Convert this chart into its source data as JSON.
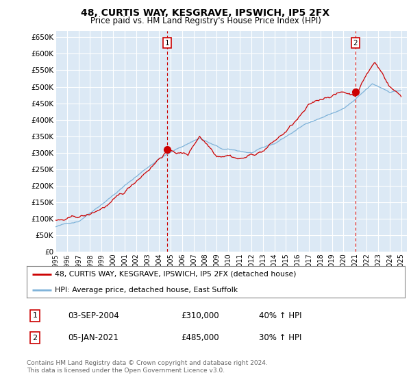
{
  "title": "48, CURTIS WAY, KESGRAVE, IPSWICH, IP5 2FX",
  "subtitle": "Price paid vs. HM Land Registry's House Price Index (HPI)",
  "ylabel_ticks": [
    "£0",
    "£50K",
    "£100K",
    "£150K",
    "£200K",
    "£250K",
    "£300K",
    "£350K",
    "£400K",
    "£450K",
    "£500K",
    "£550K",
    "£600K",
    "£650K"
  ],
  "ytick_values": [
    0,
    50000,
    100000,
    150000,
    200000,
    250000,
    300000,
    350000,
    400000,
    450000,
    500000,
    550000,
    600000,
    650000
  ],
  "ylim": [
    0,
    670000
  ],
  "xlim_start": 1995.0,
  "xlim_end": 2025.5,
  "background_color": "#ffffff",
  "plot_bg_color": "#dce9f5",
  "grid_color": "#ffffff",
  "red_line_color": "#cc0000",
  "blue_line_color": "#7fb3d9",
  "marker1_x": 2004.67,
  "marker1_y": 310000,
  "marker2_x": 2021.04,
  "marker2_y": 485000,
  "marker_color": "#cc0000",
  "dashed_line_color": "#cc0000",
  "legend_label_red": "48, CURTIS WAY, KESGRAVE, IPSWICH, IP5 2FX (detached house)",
  "legend_label_blue": "HPI: Average price, detached house, East Suffolk",
  "annotation1_num": "1",
  "annotation1_date": "03-SEP-2004",
  "annotation1_price": "£310,000",
  "annotation1_hpi": "40% ↑ HPI",
  "annotation2_num": "2",
  "annotation2_date": "05-JAN-2021",
  "annotation2_price": "£485,000",
  "annotation2_hpi": "30% ↑ HPI",
  "footer": "Contains HM Land Registry data © Crown copyright and database right 2024.\nThis data is licensed under the Open Government Licence v3.0.",
  "xtick_years": [
    1995,
    1996,
    1997,
    1998,
    1999,
    2000,
    2001,
    2002,
    2003,
    2004,
    2005,
    2006,
    2007,
    2008,
    2009,
    2010,
    2011,
    2012,
    2013,
    2014,
    2015,
    2016,
    2017,
    2018,
    2019,
    2020,
    2021,
    2022,
    2023,
    2024,
    2025
  ]
}
